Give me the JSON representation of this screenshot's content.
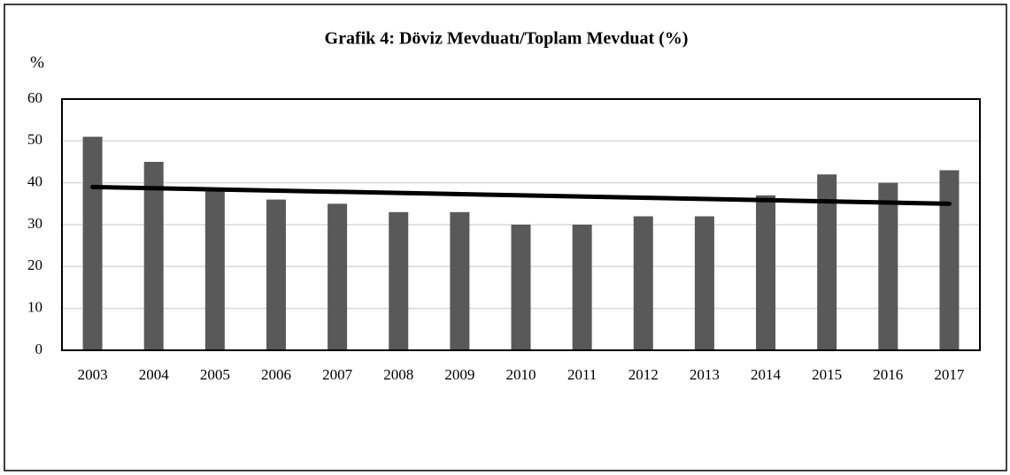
{
  "chart_data": {
    "type": "bar",
    "title": "Grafik 4: Döviz Mevduatı/Toplam Mevduat (%)",
    "ylabel": "%",
    "categories": [
      "2003",
      "2004",
      "2005",
      "2006",
      "2007",
      "2008",
      "2009",
      "2010",
      "2011",
      "2012",
      "2013",
      "2014",
      "2015",
      "2016",
      "2017"
    ],
    "values": [
      51,
      45,
      38,
      36,
      35,
      33,
      33,
      30,
      30,
      32,
      32,
      37,
      42,
      40,
      43
    ],
    "color": "#595959",
    "trend_values": [
      39,
      35
    ],
    "trend_color": "#000000",
    "ylim": [
      0,
      60
    ],
    "yticks": [
      0,
      10,
      20,
      30,
      40,
      50,
      60
    ],
    "grid": true
  }
}
